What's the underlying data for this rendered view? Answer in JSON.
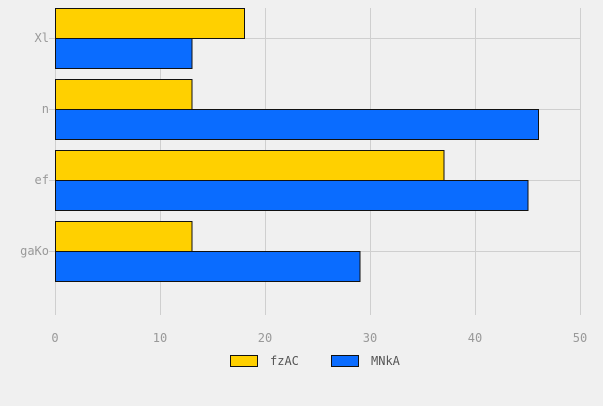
{
  "chart_data": {
    "type": "bar",
    "orientation": "horizontal",
    "categories": [
      "Xl",
      "n",
      "ef",
      "gaKo"
    ],
    "series": [
      {
        "name": "fzAC",
        "color": "#ffd000",
        "values": [
          18,
          13,
          37,
          13
        ]
      },
      {
        "name": "MNkA",
        "color": "#0a6cff",
        "values": [
          13,
          46,
          45,
          29
        ]
      }
    ],
    "xlim": [
      0,
      50
    ],
    "xticks": [
      0,
      10,
      20,
      30,
      40,
      50
    ],
    "grid": true,
    "legend": "bottom",
    "title": "",
    "xlabel": "",
    "ylabel": ""
  },
  "colors": {
    "background": "#f0f0f0",
    "grid": "#cfcfcf",
    "tick_text": "#999999",
    "bar_stroke": "#111111",
    "legend_text": "#555555"
  }
}
